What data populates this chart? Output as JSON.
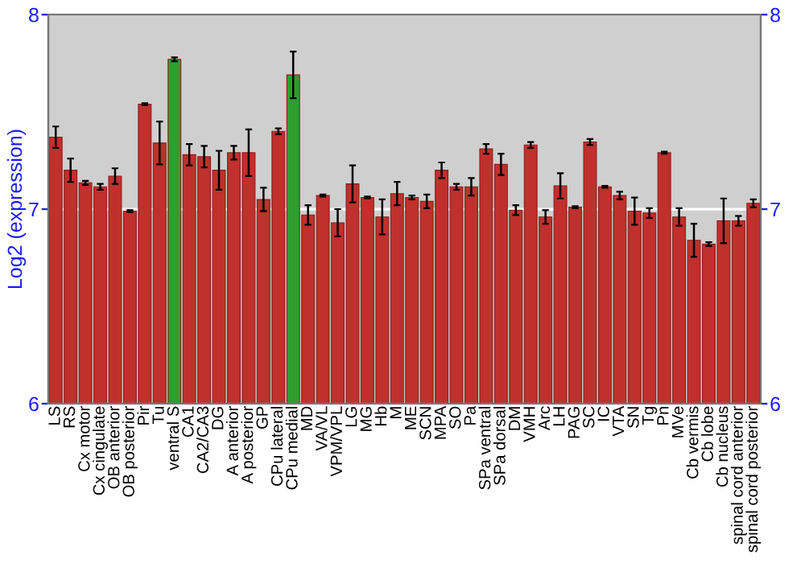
{
  "chart_data": {
    "type": "bar",
    "ylabel": "Log2 (expression)",
    "categories": [
      "LS",
      "RS",
      "Cx motor",
      "Cx cingulate",
      "OB anterior",
      "OB posterior",
      "Pir",
      "Tu",
      "ventral S",
      "CA1",
      "CA2/CA3",
      "DG",
      "A anterior",
      "A posterior",
      "GP",
      "CPu lateral",
      "CPu medial",
      "MD",
      "VA/VL",
      "VPM/VPL",
      "LG",
      "MG",
      "Hb",
      "M",
      "ME",
      "SCN",
      "MPA",
      "SO",
      "Pa",
      "SPa ventral",
      "SPa dorsal",
      "DM",
      "VMH",
      "Arc",
      "LH",
      "PAG",
      "SC",
      "IC",
      "VTA",
      "SN",
      "Tg",
      "Pn",
      "MVe",
      "Cb vermis",
      "Cb lobe",
      "Cb nucleus",
      "spinal cord anterior",
      "spinal cord posterior"
    ],
    "values": [
      7.37,
      7.2,
      7.135,
      7.115,
      7.17,
      6.99,
      7.54,
      7.34,
      7.77,
      7.28,
      7.27,
      7.2,
      7.29,
      7.29,
      7.05,
      7.4,
      7.69,
      6.97,
      7.07,
      6.93,
      7.13,
      7.06,
      6.96,
      7.08,
      7.06,
      7.04,
      7.2,
      7.115,
      7.115,
      7.31,
      7.23,
      6.995,
      7.33,
      6.96,
      7.12,
      7.01,
      7.345,
      7.115,
      7.07,
      6.99,
      6.98,
      7.29,
      6.96,
      6.84,
      6.82,
      6.94,
      6.94,
      7.03
    ],
    "errors": [
      0.055,
      0.06,
      0.01,
      0.015,
      0.04,
      0.005,
      0.005,
      0.11,
      0.01,
      0.055,
      0.055,
      0.1,
      0.035,
      0.12,
      0.06,
      0.015,
      0.12,
      0.05,
      0.005,
      0.07,
      0.095,
      0.005,
      0.09,
      0.06,
      0.01,
      0.035,
      0.04,
      0.015,
      0.045,
      0.025,
      0.055,
      0.025,
      0.015,
      0.035,
      0.065,
      0.005,
      0.015,
      0.005,
      0.02,
      0.07,
      0.025,
      0.005,
      0.045,
      0.085,
      0.01,
      0.115,
      0.025,
      0.02
    ],
    "colors": [
      "#c0302c",
      "#c0302c",
      "#c0302c",
      "#c0302c",
      "#c0302c",
      "#c0302c",
      "#c0302c",
      "#c0302c",
      "#2e9e2e",
      "#c0302c",
      "#c0302c",
      "#c0302c",
      "#c0302c",
      "#c0302c",
      "#c0302c",
      "#c0302c",
      "#2e9e2e",
      "#c0302c",
      "#c0302c",
      "#c0302c",
      "#c0302c",
      "#c0302c",
      "#c0302c",
      "#c0302c",
      "#c0302c",
      "#c0302c",
      "#c0302c",
      "#c0302c",
      "#c0302c",
      "#c0302c",
      "#c0302c",
      "#c0302c",
      "#c0302c",
      "#c0302c",
      "#c0302c",
      "#c0302c",
      "#c0302c",
      "#c0302c",
      "#c0302c",
      "#c0302c",
      "#c0302c",
      "#c0302c",
      "#c0302c",
      "#c0302c",
      "#c0302c",
      "#c0302c",
      "#c0302c",
      "#c0302c"
    ],
    "ylim": [
      6,
      8
    ],
    "yticks": [
      6,
      7,
      8
    ],
    "y2lim": [
      6,
      8
    ],
    "y2ticks": [
      6,
      7,
      8
    ],
    "grid": "y"
  }
}
